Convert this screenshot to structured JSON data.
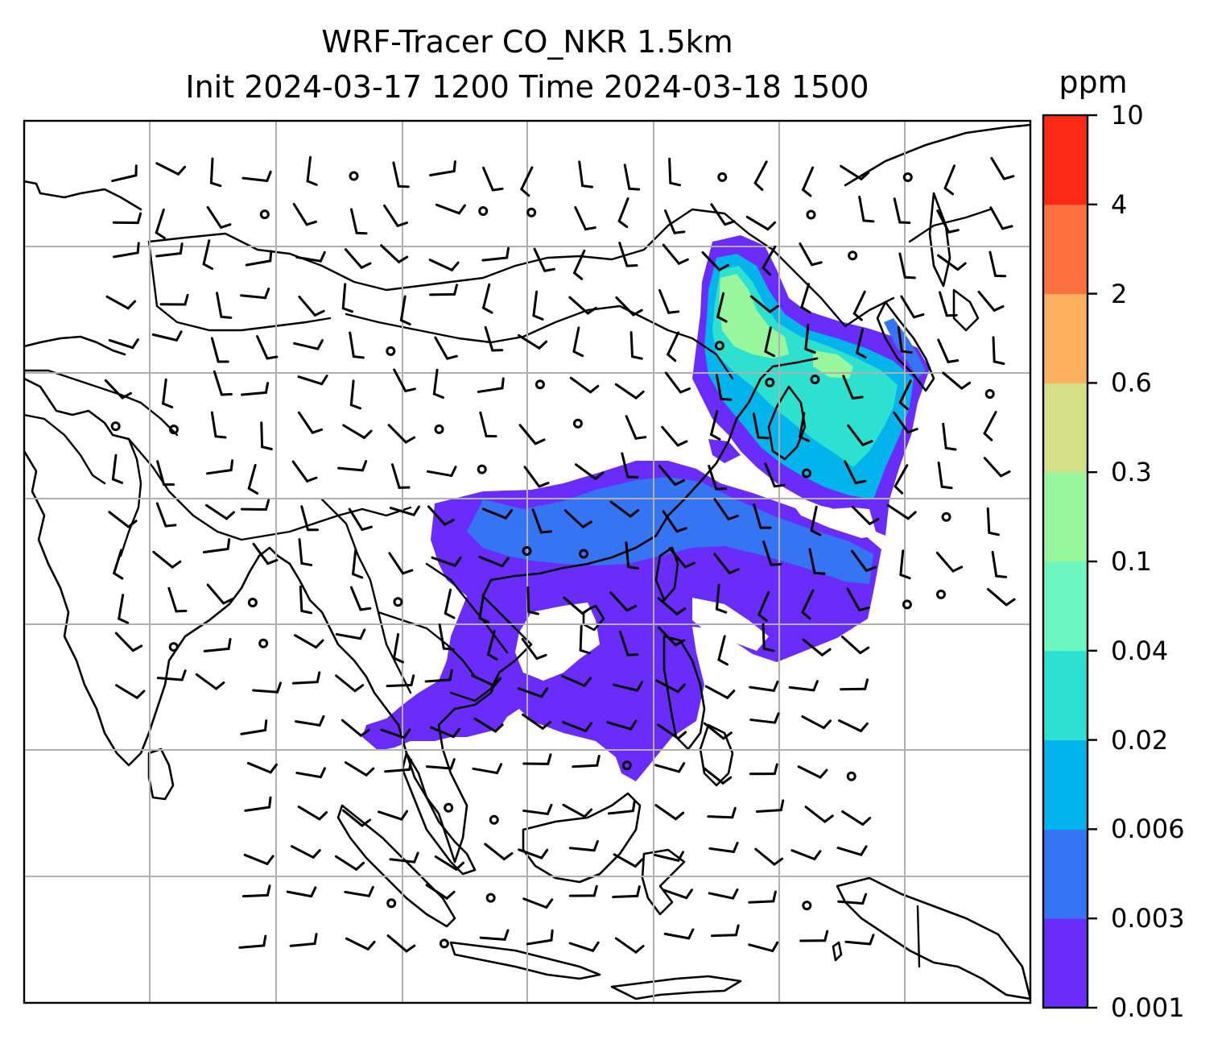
{
  "title": {
    "line1": "WRF-Tracer CO_NKR 1.5km",
    "line2": "Init 2024-03-17 1200 Time 2024-03-18 1500"
  },
  "colorbar": {
    "unit": "ppm",
    "levels": [
      "0.001",
      "0.003",
      "0.006",
      "0.02",
      "0.04",
      "0.1",
      "0.3",
      "0.6",
      "2",
      "4",
      "10"
    ],
    "colors": [
      "#6a2cfa",
      "#3574f2",
      "#02b4ec",
      "#2ee0d0",
      "#6cf6c0",
      "#98f79c",
      "#d3e088",
      "#fdb060",
      "#fd7040",
      "#fc2a14"
    ]
  },
  "map": {
    "variable": "CO_NKR tracer",
    "level": "1.5km",
    "overlays": [
      "coastlines",
      "country-borders",
      "lat-lon-gridlines",
      "wind-barbs"
    ],
    "plume_colors": {
      "low": "#6a2cfa",
      "mid": "#3574f2",
      "cyan": "#2ee0d0",
      "teal": "#02b4ec",
      "light_green": "#98f79c"
    }
  }
}
